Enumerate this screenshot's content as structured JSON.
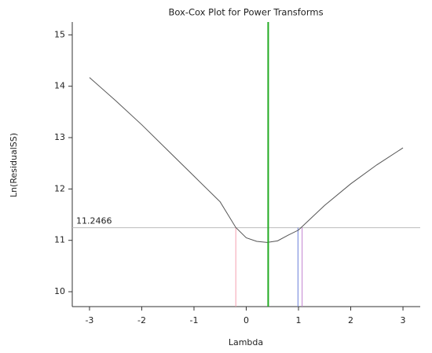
{
  "chart_data": {
    "type": "line",
    "title": "Box-Cox Plot for Power Transforms",
    "x_label": "Lambda",
    "y_label": "Ln(ResidualSS)",
    "x": [
      -3,
      -2.5,
      -2,
      -1.5,
      -1,
      -0.5,
      -0.2,
      0,
      0.2,
      0.4,
      0.6,
      0.8,
      1,
      1.5,
      2,
      2.5,
      3
    ],
    "series": [
      {
        "color": "#555555",
        "values": [
          14.17,
          13.72,
          13.25,
          12.75,
          12.25,
          11.75,
          11.25,
          11.05,
          10.98,
          10.96,
          10.99,
          11.1,
          11.2,
          11.68,
          12.1,
          12.47,
          12.8
        ]
      }
    ],
    "threshold": 11.2466,
    "threshold_color": "#bbbbbb",
    "lambda_line": {
      "value": 0.42,
      "color": "#22aa22"
    },
    "ci_lines": [
      {
        "value": -0.2,
        "color": "#f4a0b0"
      },
      {
        "value": 0.99,
        "color": "#6a7fd8"
      },
      {
        "value": 1.07,
        "color": "#c080d0"
      }
    ],
    "xlim": [
      -3.33,
      3.33
    ],
    "xticks": [
      -3,
      -2,
      -1,
      0,
      1,
      2,
      3
    ],
    "ylim": [
      9.71,
      15.25
    ],
    "yticks": [
      10,
      11,
      12,
      13,
      14,
      15
    ]
  }
}
